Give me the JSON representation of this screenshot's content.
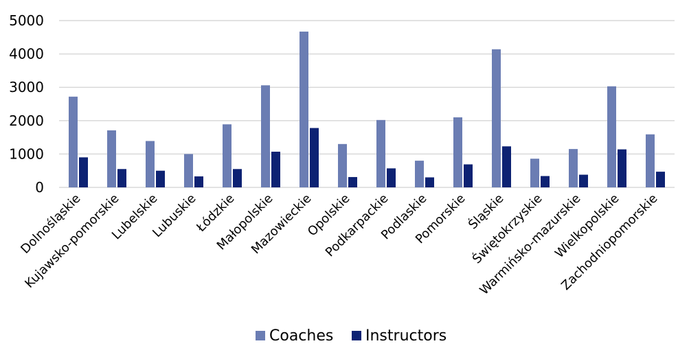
{
  "chart_data": {
    "type": "bar",
    "categories": [
      "Dolnośląskie",
      "Kujawsko-pomorskie",
      "Lubelskie",
      "Lubuskie",
      "Łódzkie",
      "Małopolskie",
      "Mazowieckie",
      "Opolskie",
      "Podkarpackie",
      "Podlaskie",
      "Pomorskie",
      "Śląskie",
      "Świętokrzyskie",
      "Warmińsko-mazurskie",
      "Wielkopolskie",
      "Zachodniopomorskie"
    ],
    "series": [
      {
        "name": "Coaches",
        "color": "#6b7db3",
        "values": [
          2720,
          1710,
          1390,
          1000,
          1890,
          3060,
          4670,
          1300,
          2020,
          800,
          2100,
          4140,
          860,
          1150,
          3030,
          1590
        ]
      },
      {
        "name": "Instructors",
        "color": "#0d2273",
        "values": [
          900,
          550,
          500,
          330,
          550,
          1070,
          1780,
          310,
          570,
          300,
          690,
          1230,
          340,
          380,
          1140,
          470
        ]
      }
    ],
    "yticks": [
      "0",
      "1000",
      "2000",
      "3000",
      "4000",
      "5000"
    ],
    "ylim": [
      0,
      5000
    ],
    "grid": true,
    "legend_position": "bottom"
  }
}
